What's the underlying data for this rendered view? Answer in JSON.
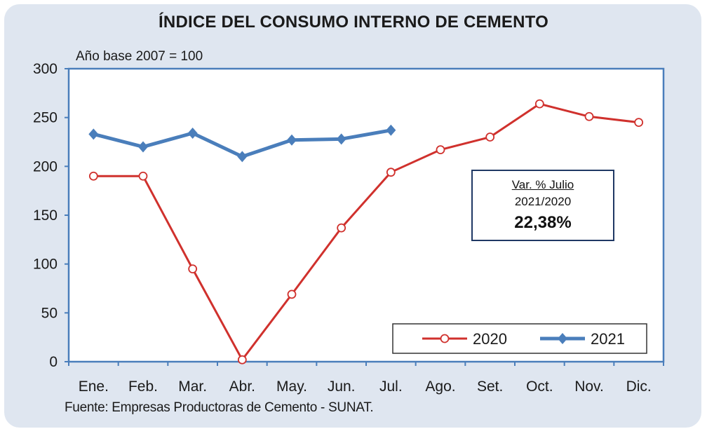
{
  "chart_data": {
    "type": "line",
    "title": "ÍNDICE DEL CONSUMO INTERNO DE CEMENTO",
    "subtitle": "Año base 2007  =  100",
    "source": "Fuente: Empresas Productoras de Cemento - SUNAT.",
    "categories": [
      "Ene.",
      "Feb.",
      "Mar.",
      "Abr.",
      "May.",
      "Jun.",
      "Jul.",
      "Ago.",
      "Set.",
      "Oct.",
      "Nov.",
      "Dic."
    ],
    "ylim": [
      0,
      300
    ],
    "yticks": [
      0,
      50,
      100,
      150,
      200,
      250,
      300
    ],
    "grid": false,
    "legend_position": "bottom-right",
    "series": [
      {
        "name": "2020",
        "color": "#d0312d",
        "marker": "open-circle",
        "values": [
          190,
          190,
          95,
          2,
          69,
          137,
          194,
          217,
          230,
          264,
          251,
          245
        ]
      },
      {
        "name": "2021",
        "color": "#4a7ebb",
        "marker": "diamond",
        "values": [
          233,
          220,
          234,
          210,
          227,
          228,
          237,
          null,
          null,
          null,
          null,
          null
        ]
      }
    ],
    "annotation": {
      "line1": "Var. % Julio",
      "line2": "2021/2020",
      "value": "22,38%"
    }
  }
}
